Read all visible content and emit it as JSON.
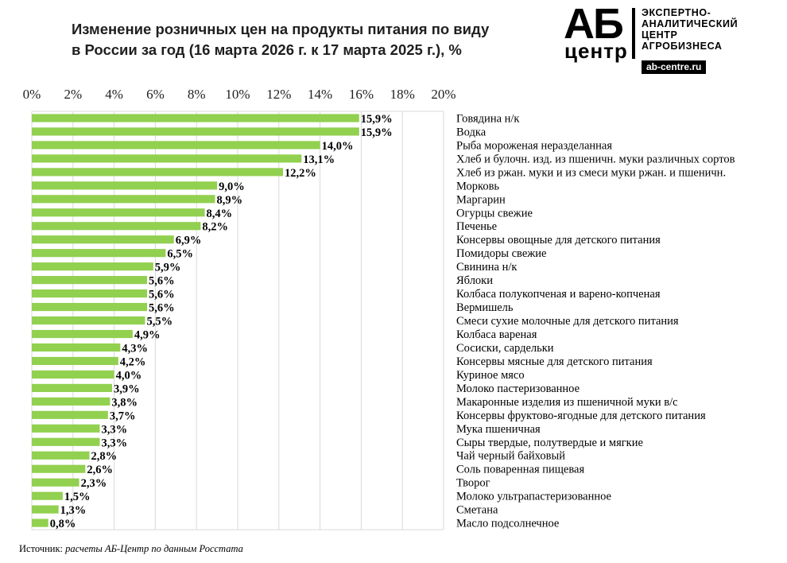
{
  "header": {
    "title_line1": "Изменение розничных цен на продукты питания по виду",
    "title_line2": "в России за год (16 марта 2026 г. к 17 марта 2025 г.), %"
  },
  "logo": {
    "mark_top": "АБ",
    "mark_bottom": "центр",
    "line1": "ЭКСПЕРТНО-",
    "line2": "АНАЛИТИЧЕСКИЙ",
    "line3": "ЦЕНТР",
    "line4": "АГРОБИЗНЕСА",
    "url": "ab-centre.ru"
  },
  "footer": {
    "source_label": "Источник:",
    "source_text": "расчеты АБ-Центр по данным Росстата"
  },
  "colors": {
    "bar": "#92d050",
    "grid": "#d9d9d9"
  },
  "chart_data": {
    "type": "bar",
    "orientation": "horizontal",
    "xlim": [
      0,
      20
    ],
    "ticks": [
      0,
      2,
      4,
      6,
      8,
      10,
      12,
      14,
      16,
      18,
      20
    ],
    "tick_labels": [
      "0%",
      "2%",
      "4%",
      "6%",
      "8%",
      "10%",
      "12%",
      "14%",
      "16%",
      "18%",
      "20%"
    ],
    "grid": true,
    "categories": [
      "Говядина н/к",
      "Водка",
      "Рыба мороженая неразделанная",
      "Хлеб и булочн. изд. из пшеничн. муки различных сортов",
      "Хлеб из ржан. муки и из смеси муки ржан. и пшеничн.",
      "Морковь",
      "Маргарин",
      "Огурцы свежие",
      "Печенье",
      "Консервы овощные для детского питания",
      "Помидоры свежие",
      "Свинина н/к",
      "Яблоки",
      "Колбаса полукопченая и варено-копченая",
      "Вермишель",
      "Смеси сухие молочные для детского питания",
      "Колбаса вареная",
      "Сосиски, сардельки",
      "Консервы мясные для детского питания",
      "Куриное мясо",
      "Молоко пастеризованное",
      "Макаронные изделия из пшеничной муки в/с",
      "Консервы фруктово-ягодные для детского питания",
      "Мука пшеничная",
      "Сыры твердые, полутвердые и мягкие",
      "Чай черный байховый",
      "Соль поваренная пищевая",
      "Творог",
      "Молоко ультрапастеризованное",
      "Сметана",
      "Масло подсолнечное"
    ],
    "values": [
      15.9,
      15.9,
      14.0,
      13.1,
      12.2,
      9.0,
      8.9,
      8.4,
      8.2,
      6.9,
      6.5,
      5.9,
      5.6,
      5.6,
      5.6,
      5.5,
      4.9,
      4.3,
      4.2,
      4.0,
      3.9,
      3.8,
      3.7,
      3.3,
      3.3,
      2.8,
      2.6,
      2.3,
      1.5,
      1.3,
      0.8
    ],
    "data_labels": [
      "15,9%",
      "15,9%",
      "14,0%",
      "13,1%",
      "12,2%",
      "9,0%",
      "8,9%",
      "8,4%",
      "8,2%",
      "6,9%",
      "6,5%",
      "5,9%",
      "5,6%",
      "5,6%",
      "5,6%",
      "5,5%",
      "4,9%",
      "4,3%",
      "4,2%",
      "4,0%",
      "3,9%",
      "3,8%",
      "3,7%",
      "3,3%",
      "3,3%",
      "2,8%",
      "2,6%",
      "2,3%",
      "1,5%",
      "1,3%",
      "0,8%"
    ]
  }
}
